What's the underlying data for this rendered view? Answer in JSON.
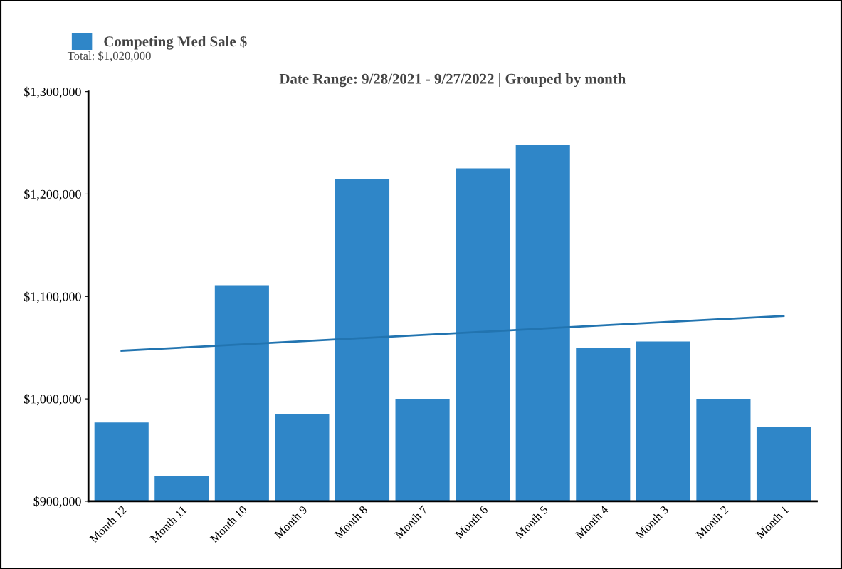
{
  "chart_data": {
    "type": "bar",
    "title": "Date Range: 9/28/2021 - 9/27/2022 | Grouped by month",
    "categories": [
      "Month 12",
      "Month 11",
      "Month 10",
      "Month 9",
      "Month 8",
      "Month 7",
      "Month 6",
      "Month 5",
      "Month 4",
      "Month 3",
      "Month 2",
      "Month 1"
    ],
    "series": [
      {
        "name": "Competing Med Sale $",
        "color": "#2f86c8",
        "values": [
          977000,
          925000,
          1111000,
          985000,
          1215000,
          1000000,
          1225000,
          1248000,
          1050000,
          1056000,
          1000000,
          973000
        ]
      },
      {
        "type": "line",
        "color": "#2274b0",
        "values": [
          1047000,
          null,
          null,
          null,
          null,
          null,
          null,
          null,
          null,
          null,
          null,
          1081000
        ]
      }
    ],
    "annotations": [
      "Total: $1,020,000"
    ],
    "ylim": [
      900000,
      1300000
    ],
    "yticks": [
      {
        "value": 900000,
        "label": "$900,000"
      },
      {
        "value": 1000000,
        "label": "$1,000,000"
      },
      {
        "value": 1100000,
        "label": "$1,100,000"
      },
      {
        "value": 1200000,
        "label": "$1,200,000"
      },
      {
        "value": 1300000,
        "label": "$1,300,000"
      }
    ],
    "grid": false,
    "legend": "top left"
  }
}
